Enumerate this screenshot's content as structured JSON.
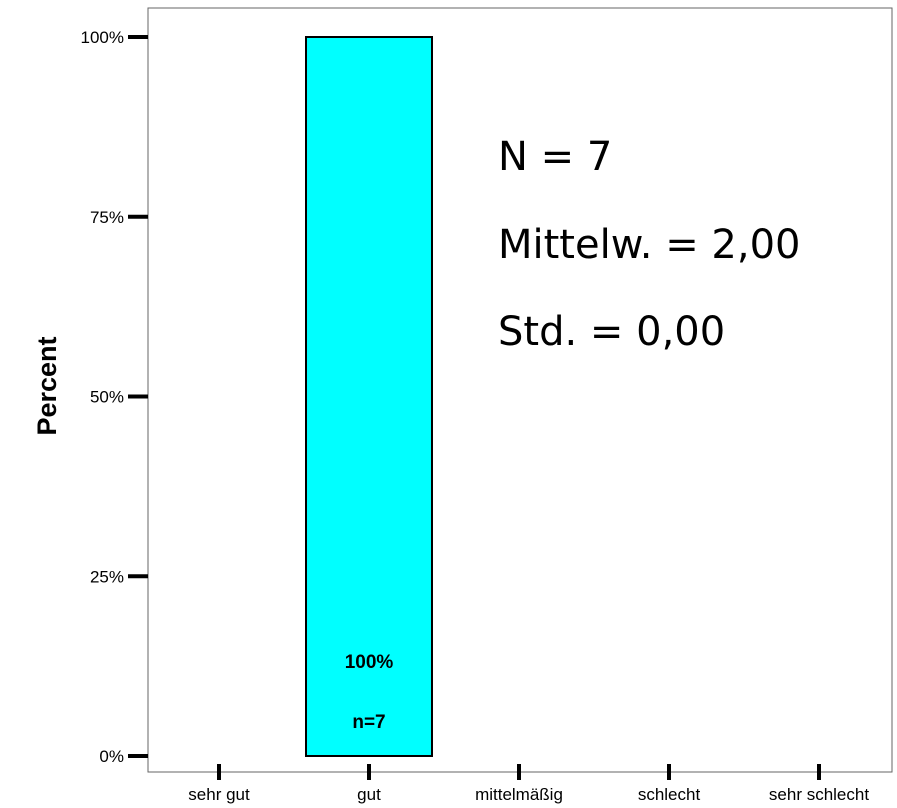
{
  "chart_data": {
    "type": "bar",
    "categories": [
      "sehr gut",
      "gut",
      "mittelmäßig",
      "schlecht",
      "sehr schlecht"
    ],
    "values": [
      0,
      100,
      0,
      0,
      0
    ],
    "counts": [
      0,
      7,
      0,
      0,
      0
    ],
    "ylabel": "Percent",
    "xlabel": "",
    "ylim": [
      0,
      100
    ],
    "yticks": [
      0,
      25,
      50,
      75,
      100
    ],
    "ytick_labels": [
      "0%",
      "25%",
      "50%",
      "75%",
      "100%"
    ],
    "bar_labels": [
      {
        "category": "gut",
        "percent_label": "100%",
        "count_label": "n=7"
      }
    ],
    "stats": {
      "n": "N = 7",
      "mean": "Mittelw. = 2,00",
      "std": "Std. = 0,00"
    },
    "colors": {
      "bar": "#00FFFF",
      "axis": "#000000",
      "frame": "#666666"
    },
    "grid": false
  }
}
